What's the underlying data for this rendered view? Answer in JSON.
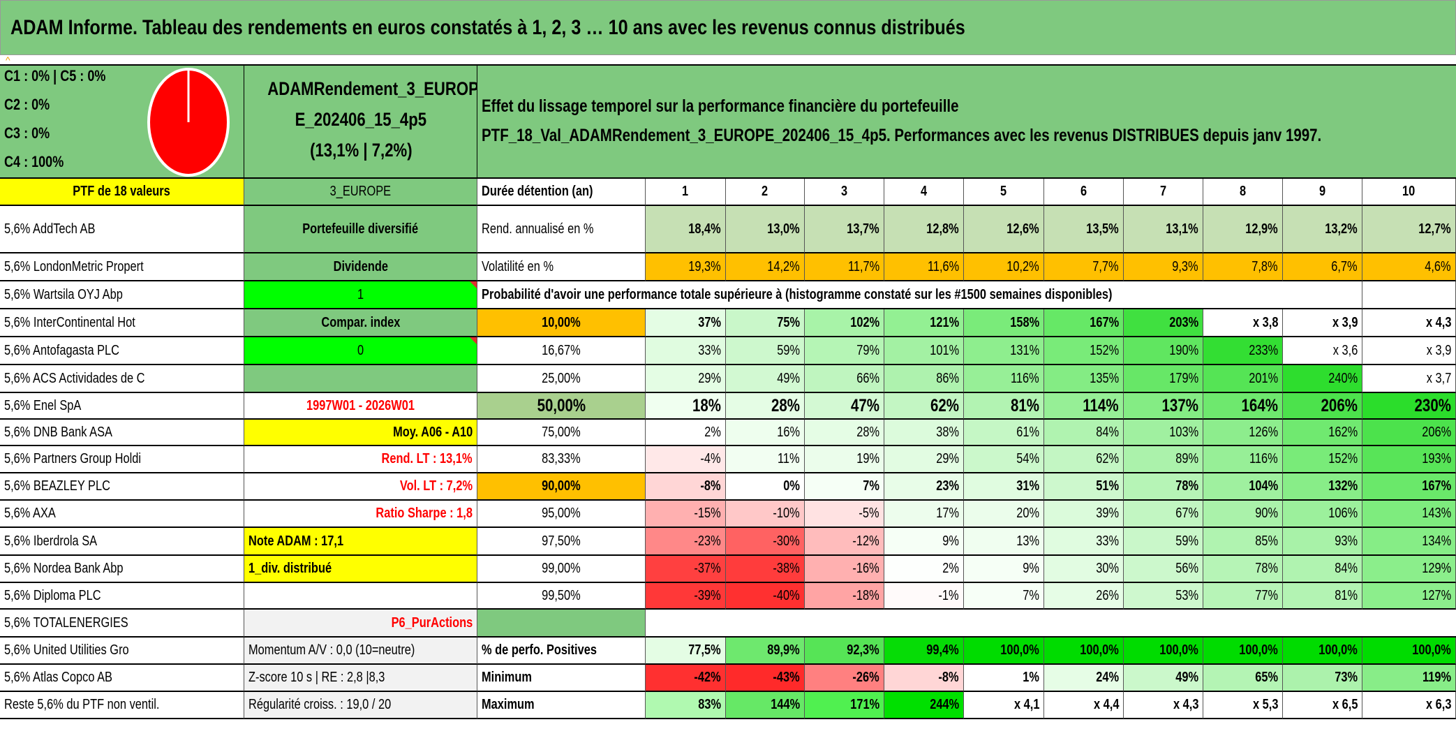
{
  "title": "ADAM Informe. Tableau des rendements en euros constatés à 1, 2, 3 … 10 ans avec les revenus connus distribués",
  "allocation": {
    "lines": [
      "C1 : 0% | C5 : 0%",
      "C2 : 0%",
      "C3 : 0%",
      "C4 : 100%"
    ],
    "pie": {
      "C1": 0,
      "C2": 0,
      "C3": 0,
      "C4": 100,
      "C5": 0,
      "color": "#ff0000"
    }
  },
  "fund": {
    "lines": [
      "ADAMRendement_3_EUROP",
      "E_202406_15_4p5",
      "(13,1% | 7,2%)"
    ]
  },
  "description": {
    "lines": [
      "Effet du lissage temporel sur la performance financière du portefeuille",
      "PTF_18_Val_ADAMRendement_3_EUROPE_202406_15_4p5. Performances avec les revenus DISTRIBUES depuis janv 1997."
    ]
  },
  "header": {
    "portfolio": "PTF de 18 valeurs",
    "zone": "3_EUROPE",
    "duration_label": "Durée détention (an)",
    "years": [
      "1",
      "2",
      "3",
      "4",
      "5",
      "6",
      "7",
      "8",
      "9",
      "10"
    ]
  },
  "colors": {
    "green": "#7fc97f",
    "yellow": "#ffff00",
    "orange": "#ffc000",
    "bright_green": "#00ff00",
    "red_text": "#ff0000"
  },
  "grid": [
    {
      "holding": "5,6% AddTech AB",
      "info": {
        "text": "Portefeuille diversifié",
        "bg": "#7fc97f",
        "color": "#000"
      },
      "label": {
        "text": "Rend. annualisé en %",
        "bg": "#ffffff"
      },
      "cells": [
        {
          "v": "18,4%",
          "bg": "#c6e0b4"
        },
        {
          "v": "13,0%",
          "bg": "#c6e0b4"
        },
        {
          "v": "13,7%",
          "bg": "#c6e0b4"
        },
        {
          "v": "12,8%",
          "bg": "#c6e0b4"
        },
        {
          "v": "12,6%",
          "bg": "#c6e0b4"
        },
        {
          "v": "13,5%",
          "bg": "#c6e0b4"
        },
        {
          "v": "13,1%",
          "bg": "#c6e0b4"
        },
        {
          "v": "12,9%",
          "bg": "#c6e0b4"
        },
        {
          "v": "13,2%",
          "bg": "#c6e0b4"
        },
        {
          "v": "12,7%",
          "bg": "#c6e0b4"
        }
      ]
    },
    {
      "holding": "5,6% LondonMetric Propert",
      "info": {
        "text": "Dividende",
        "bg": "#7fc97f",
        "color": "#000"
      },
      "label": {
        "text": "Volatilité en %",
        "bg": "#ffffff"
      },
      "cells": [
        {
          "v": "19,3%",
          "bg": "#ffc000"
        },
        {
          "v": "14,2%",
          "bg": "#ffc000"
        },
        {
          "v": "11,7%",
          "bg": "#ffc000"
        },
        {
          "v": "11,6%",
          "bg": "#ffc000"
        },
        {
          "v": "10,2%",
          "bg": "#ffc000"
        },
        {
          "v": "7,7%",
          "bg": "#ffc000"
        },
        {
          "v": "9,3%",
          "bg": "#ffc000"
        },
        {
          "v": "7,8%",
          "bg": "#ffc000"
        },
        {
          "v": "6,7%",
          "bg": "#ffc000"
        },
        {
          "v": "4,6%",
          "bg": "#ffc000"
        }
      ]
    },
    {
      "holding": "5,6% Wartsila OYJ Abp",
      "info": {
        "text": "1",
        "bg": "#00ff00",
        "color": "#000"
      },
      "label": {
        "text": "Probabilité d'avoir une performance totale supérieure à (histogramme constaté sur les #1500 semaines disponibles)",
        "bg": "#ffffff"
      },
      "cells": []
    },
    {
      "holding": "5,6% InterContinental Hot",
      "info": {
        "text": "Compar. index",
        "bg": "#7fc97f",
        "color": "#000"
      },
      "label": {
        "text": "10,00%",
        "bg": "#ffc000"
      },
      "cells": [
        {
          "v": "37%",
          "bg": "#e4fde4"
        },
        {
          "v": "75%",
          "bg": "#c9f7c9"
        },
        {
          "v": "102%",
          "bg": "#a8f3a8"
        },
        {
          "v": "121%",
          "bg": "#93f093"
        },
        {
          "v": "158%",
          "bg": "#7aeb7a"
        },
        {
          "v": "167%",
          "bg": "#66e866"
        },
        {
          "v": "203%",
          "bg": "#40e040"
        },
        {
          "v": "x 3,8",
          "bg": "#ffffff"
        },
        {
          "v": "x 3,9",
          "bg": "#ffffff"
        },
        {
          "v": "x 4,3",
          "bg": "#ffffff"
        }
      ]
    },
    {
      "holding": "5,6% Antofagasta PLC",
      "info": {
        "text": "0",
        "bg": "#00ff00",
        "color": "#000"
      },
      "label": {
        "text": "16,67%",
        "bg": "#ffffff"
      },
      "cells": [
        {
          "v": "33%",
          "bg": "#e0fce0"
        },
        {
          "v": "59%",
          "bg": "#cdf8cd"
        },
        {
          "v": "79%",
          "bg": "#b5f5b5"
        },
        {
          "v": "101%",
          "bg": "#a3f1a3"
        },
        {
          "v": "131%",
          "bg": "#8eee8e"
        },
        {
          "v": "152%",
          "bg": "#79eb79"
        },
        {
          "v": "190%",
          "bg": "#60e660"
        },
        {
          "v": "233%",
          "bg": "#33de33"
        },
        {
          "v": "x 3,6",
          "bg": "#ffffff"
        },
        {
          "v": "x 3,9",
          "bg": "#ffffff"
        }
      ]
    },
    {
      "holding": "5,6% ACS Actividades de C",
      "info": {
        "text": "",
        "bg": "#7fc97f",
        "color": "#000"
      },
      "label": {
        "text": "25,00%",
        "bg": "#ffffff"
      },
      "cells": [
        {
          "v": "29%",
          "bg": "#e4fde4"
        },
        {
          "v": "49%",
          "bg": "#d2f9d2"
        },
        {
          "v": "66%",
          "bg": "#bff5bf"
        },
        {
          "v": "86%",
          "bg": "#aef2ae"
        },
        {
          "v": "116%",
          "bg": "#97ef97"
        },
        {
          "v": "135%",
          "bg": "#84ec84"
        },
        {
          "v": "179%",
          "bg": "#67e767"
        },
        {
          "v": "201%",
          "bg": "#55e455"
        },
        {
          "v": "240%",
          "bg": "#2edd2e"
        },
        {
          "v": "x 3,7",
          "bg": "#ffffff"
        }
      ]
    },
    {
      "holding": "5,6% Enel SpA",
      "info": {
        "text": "1997W01 - 2026W01",
        "bg": "#ffffff",
        "color": "#ff0000"
      },
      "label": {
        "text": "50,00%",
        "bg": "#a9d08e"
      },
      "cells": [
        {
          "v": "18%",
          "bg": "#f0fff0"
        },
        {
          "v": "28%",
          "bg": "#e5fde5"
        },
        {
          "v": "47%",
          "bg": "#d3f9d3"
        },
        {
          "v": "62%",
          "bg": "#c3f6c3"
        },
        {
          "v": "81%",
          "bg": "#b2f3b2"
        },
        {
          "v": "114%",
          "bg": "#96ef96"
        },
        {
          "v": "137%",
          "bg": "#84ec84"
        },
        {
          "v": "164%",
          "bg": "#6ee86e"
        },
        {
          "v": "206%",
          "bg": "#4ce24c"
        },
        {
          "v": "230%",
          "bg": "#2bdd2b"
        }
      ]
    },
    {
      "holding": "5,6% DNB Bank ASA",
      "info": {
        "text": "Moy. A06 - A10",
        "bg": "#ffff00",
        "color": "#000"
      },
      "label": {
        "text": "75,00%",
        "bg": "#ffffff"
      },
      "cells": [
        {
          "v": "2%",
          "bg": "#ffffff"
        },
        {
          "v": "16%",
          "bg": "#eefeee"
        },
        {
          "v": "28%",
          "bg": "#e5fde5"
        },
        {
          "v": "38%",
          "bg": "#dcfbdc"
        },
        {
          "v": "61%",
          "bg": "#c5f7c5"
        },
        {
          "v": "84%",
          "bg": "#b0f3b0"
        },
        {
          "v": "103%",
          "bg": "#a0f0a0"
        },
        {
          "v": "126%",
          "bg": "#8ded8d"
        },
        {
          "v": "162%",
          "bg": "#70e970"
        },
        {
          "v": "206%",
          "bg": "#4ce24c"
        }
      ]
    },
    {
      "holding": "5,6% Partners Group Holdi",
      "info": {
        "text": "Rend. LT : 13,1%",
        "bg": "#ffffff",
        "color": "#ff0000"
      },
      "label": {
        "text": "83,33%",
        "bg": "#ffffff"
      },
      "cells": [
        {
          "v": "-4%",
          "bg": "#ffe8e8"
        },
        {
          "v": "11%",
          "bg": "#f2fef2"
        },
        {
          "v": "19%",
          "bg": "#ebfdeb"
        },
        {
          "v": "29%",
          "bg": "#e2fce2"
        },
        {
          "v": "54%",
          "bg": "#cbf8cb"
        },
        {
          "v": "62%",
          "bg": "#c3f6c3"
        },
        {
          "v": "89%",
          "bg": "#abf2ab"
        },
        {
          "v": "116%",
          "bg": "#97ef97"
        },
        {
          "v": "152%",
          "bg": "#79eb79"
        },
        {
          "v": "193%",
          "bg": "#58e458"
        }
      ]
    },
    {
      "holding": "5,6% BEAZLEY PLC",
      "info": {
        "text": "Vol. LT : 7,2%",
        "bg": "#ffffff",
        "color": "#ff0000"
      },
      "label": {
        "text": "90,00%",
        "bg": "#ffc000"
      },
      "cells": [
        {
          "v": "-8%",
          "bg": "#ffd6d6"
        },
        {
          "v": "0%",
          "bg": "#ffffff"
        },
        {
          "v": "7%",
          "bg": "#f6fff6"
        },
        {
          "v": "23%",
          "bg": "#e8fde8"
        },
        {
          "v": "31%",
          "bg": "#e0fce0"
        },
        {
          "v": "51%",
          "bg": "#cdf8cd"
        },
        {
          "v": "78%",
          "bg": "#b6f4b6"
        },
        {
          "v": "104%",
          "bg": "#9ff09f"
        },
        {
          "v": "132%",
          "bg": "#88ed88"
        },
        {
          "v": "167%",
          "bg": "#6ae86a"
        }
      ]
    },
    {
      "holding": "5,6% AXA",
      "info": {
        "text": "Ratio Sharpe : 1,8",
        "bg": "#ffffff",
        "color": "#ff0000"
      },
      "label": {
        "text": "95,00%",
        "bg": "#ffffff"
      },
      "cells": [
        {
          "v": "-15%",
          "bg": "#ffb0b0"
        },
        {
          "v": "-10%",
          "bg": "#ffc8c8"
        },
        {
          "v": "-5%",
          "bg": "#ffe2e2"
        },
        {
          "v": "17%",
          "bg": "#edfded"
        },
        {
          "v": "20%",
          "bg": "#ebfdeb"
        },
        {
          "v": "39%",
          "bg": "#dbfbdb"
        },
        {
          "v": "67%",
          "bg": "#c2f6c2"
        },
        {
          "v": "90%",
          "bg": "#aaf2aa"
        },
        {
          "v": "106%",
          "bg": "#9cf09c"
        },
        {
          "v": "143%",
          "bg": "#7eec7e"
        }
      ]
    },
    {
      "holding": "5,6% Iberdrola SA",
      "info": {
        "text": "Note ADAM : 17,1",
        "bg": "#ffff00",
        "color": "#000"
      },
      "label": {
        "text": "97,50%",
        "bg": "#ffffff"
      },
      "cells": [
        {
          "v": "-23%",
          "bg": "#ff8888"
        },
        {
          "v": "-30%",
          "bg": "#ff6262"
        },
        {
          "v": "-12%",
          "bg": "#ffbcbc"
        },
        {
          "v": "9%",
          "bg": "#f6fff6"
        },
        {
          "v": "13%",
          "bg": "#f0fef0"
        },
        {
          "v": "33%",
          "bg": "#e0fce0"
        },
        {
          "v": "59%",
          "bg": "#c9f7c9"
        },
        {
          "v": "85%",
          "bg": "#b0f3b0"
        },
        {
          "v": "93%",
          "bg": "#a8f2a8"
        },
        {
          "v": "134%",
          "bg": "#86ed86"
        }
      ]
    },
    {
      "holding": "5,6% Nordea Bank Abp",
      "info": {
        "text": "1_div. distribué",
        "bg": "#ffff00",
        "color": "#000"
      },
      "label": {
        "text": "99,00%",
        "bg": "#ffffff"
      },
      "cells": [
        {
          "v": "-37%",
          "bg": "#ff4040"
        },
        {
          "v": "-38%",
          "bg": "#ff3c3c"
        },
        {
          "v": "-16%",
          "bg": "#ffb0b0"
        },
        {
          "v": "2%",
          "bg": "#fdfffd"
        },
        {
          "v": "9%",
          "bg": "#f6fff6"
        },
        {
          "v": "30%",
          "bg": "#e2fce2"
        },
        {
          "v": "56%",
          "bg": "#ccf8cc"
        },
        {
          "v": "78%",
          "bg": "#b6f4b6"
        },
        {
          "v": "84%",
          "bg": "#b0f3b0"
        },
        {
          "v": "129%",
          "bg": "#8bee8b"
        }
      ]
    },
    {
      "holding": "5,6% Diploma PLC",
      "info": {
        "text": "",
        "bg": "#ffffff",
        "color": "#000"
      },
      "label": {
        "text": "99,50%",
        "bg": "#ffffff"
      },
      "cells": [
        {
          "v": "-39%",
          "bg": "#ff3838"
        },
        {
          "v": "-40%",
          "bg": "#ff3030"
        },
        {
          "v": "-18%",
          "bg": "#ffa4a4"
        },
        {
          "v": "-1%",
          "bg": "#fffafa"
        },
        {
          "v": "7%",
          "bg": "#f7fff7"
        },
        {
          "v": "26%",
          "bg": "#e6fde6"
        },
        {
          "v": "53%",
          "bg": "#cef8ce"
        },
        {
          "v": "77%",
          "bg": "#b7f4b7"
        },
        {
          "v": "81%",
          "bg": "#b3f3b3"
        },
        {
          "v": "127%",
          "bg": "#8cee8c"
        }
      ]
    },
    {
      "holding": "5,6% TOTALENERGIES",
      "info": {
        "text": "P6_PurActions",
        "bg": "#f2f2f2",
        "color": "#ff0000"
      },
      "label": {
        "text": "",
        "bg": "#7fc97f"
      },
      "cells": []
    },
    {
      "holding": "5,6% United Utilities Gro",
      "info": {
        "text": "Momentum A/V : 0,0 (10=neutre)",
        "bg": "#f2f2f2",
        "color": "#000"
      },
      "label": {
        "text": "% de perfo. Positives",
        "bg": "#ffffff"
      },
      "cells": [
        {
          "v": "77,5%",
          "bg": "#e4fde4"
        },
        {
          "v": "89,9%",
          "bg": "#6ee86e"
        },
        {
          "v": "92,3%",
          "bg": "#56e456"
        },
        {
          "v": "99,4%",
          "bg": "#06dc06"
        },
        {
          "v": "100,0%",
          "bg": "#00dc00"
        },
        {
          "v": "100,0%",
          "bg": "#00dc00"
        },
        {
          "v": "100,0%",
          "bg": "#00dc00"
        },
        {
          "v": "100,0%",
          "bg": "#00dc00"
        },
        {
          "v": "100,0%",
          "bg": "#00dc00"
        },
        {
          "v": "100,0%",
          "bg": "#00dc00"
        }
      ]
    },
    {
      "holding": "5,6% Atlas Copco AB",
      "info": {
        "text": "Z-score 10 s | RE : 2,8 |8,3",
        "bg": "#f2f2f2",
        "color": "#000"
      },
      "label": {
        "text": "Minimum",
        "bg": "#ffffff"
      },
      "cells": [
        {
          "v": "-42%",
          "bg": "#ff3030"
        },
        {
          "v": "-43%",
          "bg": "#ff2a2a"
        },
        {
          "v": "-26%",
          "bg": "#ff8080"
        },
        {
          "v": "-8%",
          "bg": "#ffd6d6"
        },
        {
          "v": "1%",
          "bg": "#ffffff"
        },
        {
          "v": "24%",
          "bg": "#e6fde6"
        },
        {
          "v": "49%",
          "bg": "#cbf8cb"
        },
        {
          "v": "65%",
          "bg": "#b4f4b4"
        },
        {
          "v": "73%",
          "bg": "#acf2ac"
        },
        {
          "v": "119%",
          "bg": "#88ed88"
        }
      ]
    },
    {
      "holding": "Reste 5,6% du PTF non ventil.",
      "info": {
        "text": "Régularité croiss. : 19,0 / 20",
        "bg": "#f2f2f2",
        "color": "#000"
      },
      "label": {
        "text": "Maximum",
        "bg": "#ffffff"
      },
      "cells": [
        {
          "v": "83%",
          "bg": "#b0f9b0"
        },
        {
          "v": "144%",
          "bg": "#66e866"
        },
        {
          "v": "171%",
          "bg": "#50f050"
        },
        {
          "v": "244%",
          "bg": "#00e000"
        },
        {
          "v": "x 4,1",
          "bg": "#ffffff"
        },
        {
          "v": "x 4,4",
          "bg": "#ffffff"
        },
        {
          "v": "x 4,3",
          "bg": "#ffffff"
        },
        {
          "v": "x 5,3",
          "bg": "#ffffff"
        },
        {
          "v": "x 6,5",
          "bg": "#ffffff"
        },
        {
          "v": "x 6,3",
          "bg": "#ffffff"
        }
      ]
    }
  ]
}
